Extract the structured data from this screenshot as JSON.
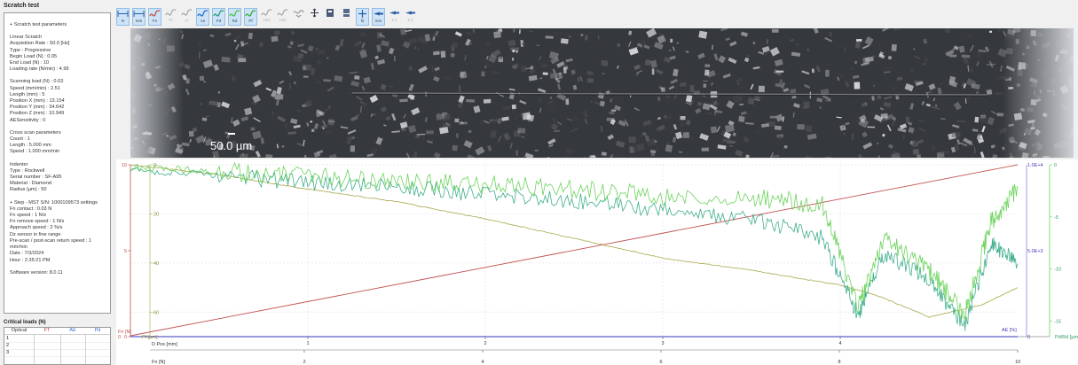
{
  "panel": {
    "title": "Scratch test",
    "params": [
      "+ Scratch test parameters",
      "",
      "Linear Scratch",
      "Acquisition Rate : 50.0 [Hz]",
      "Type : Progressive",
      "Begin Load (N) : 0.05",
      "End Load (N) : 10",
      "Loading rate (N/min) : 4.99",
      "",
      "Scanning load (N) : 0.03",
      "Speed (mm/min) : 2.51",
      "Length (mm) : 5",
      "Position X (mm) : 13.154",
      "Position Y (mm) : 34.642",
      "Position Z (mm) : 10.949",
      "AESensitivity : 0",
      "",
      "Cross scan parameters",
      "Count : 1",
      "Length : 5.000 mm",
      "Speed : 1.000 mm/min",
      "",
      "Indenter",
      "Type : Rockwell",
      "Serial number : SF-A95",
      "Material : Diamond",
      "Radius (µm) : 50",
      "",
      "+ Step - MST S/N: 1000109573 settings",
      "  Fn contact : 0.03 N",
      "  Fn speed : 1 N/s",
      "  Fn remove speed : 1 N/s",
      "  Approach speed : 2 %/s",
      "  Dz sensor in fine range",
      "  Pre-scan / post-scan return speed : 1",
      "mm/min",
      "Date : 7/3/2024",
      "Hour : 2:35:21 PM",
      "",
      "Software version: 8.0.11"
    ],
    "critical_title": "Critical loads (N)",
    "critical_headers": [
      "Optical",
      "FT",
      "AE",
      "Pd"
    ],
    "critical_rows": [
      "1",
      "2",
      "3"
    ]
  },
  "toolbar": {
    "buttons": [
      {
        "icon": "fit-n-icon",
        "label": "N",
        "active": true
      },
      {
        "icon": "fit-mm-icon",
        "label": "mm",
        "active": true
      },
      {
        "icon": "curve-fn-icon",
        "label": "Fn",
        "active": true
      },
      {
        "icon": "curve-ft-icon",
        "label": "Ft",
        "active": false
      },
      {
        "icon": "curve-mu-icon",
        "label": "µ",
        "active": false
      },
      {
        "icon": "curve-ae-icon",
        "label": "Ae",
        "active": true
      },
      {
        "icon": "curve-pd-icon",
        "label": "Pd",
        "active": true
      },
      {
        "icon": "curve-rd-icon",
        "label": "Rd",
        "active": true
      },
      {
        "icon": "curve-pf-icon",
        "label": "Pf",
        "active": true
      },
      {
        "icon": "curve-us1-icon",
        "label": "Us1",
        "active": false
      },
      {
        "icon": "curve-us2-icon",
        "label": "Us2",
        "active": false
      },
      {
        "icon": "curve-dropdown-icon",
        "label": "",
        "active": false
      },
      {
        "icon": "move-icon",
        "label": "",
        "active": false
      },
      {
        "icon": "export-icon",
        "label": "",
        "active": false
      },
      {
        "icon": "layout-icon",
        "label": "",
        "active": false
      },
      {
        "icon": "zoom-fit-icon",
        "label": "fit",
        "active": true
      },
      {
        "icon": "magnify-icon",
        "label": "mm",
        "active": true
      },
      {
        "icon": "magnify-1-icon",
        "label": "1:1",
        "active": false
      },
      {
        "icon": "magnify-2-icon",
        "label": "2:1",
        "active": false
      }
    ]
  },
  "micrograph": {
    "scale_label": "50.0 µm"
  },
  "chart_data": {
    "type": "line",
    "x_top_label": "D Pos [mm]",
    "x_top_ticks": [
      "1",
      "2",
      "3",
      "4"
    ],
    "x_top_range": [
      0,
      5
    ],
    "x_bottom_label": "Fn [N]",
    "x_bottom_ticks": [
      "2",
      "4",
      "6",
      "8",
      "10"
    ],
    "x_bottom_range": [
      0.05,
      10
    ],
    "y_left_outer_label": "Fn [N]",
    "y_left_outer_ticks": [
      "0",
      "5",
      "10"
    ],
    "y_left_outer_range": [
      0,
      10
    ],
    "y_left_inner_label": "Pf [µm]",
    "y_left_inner_ticks": [
      "0",
      "20",
      "40",
      "60"
    ],
    "y_left_inner_range": [
      0,
      70
    ],
    "y_right_inner_label": "AE [%]",
    "y_right_inner_ticks": [
      "0",
      "5.0E+3",
      "1.0E+4"
    ],
    "y_right_inner_range": [
      0,
      10000
    ],
    "y_right_outer_label": "Pd/Rd [µm]",
    "y_right_outer_ticks": [
      "0",
      "-5",
      "-10",
      "-15"
    ],
    "y_right_outer_range": [
      0,
      -16.5
    ],
    "colors": {
      "fn": "#c0504d",
      "pf": "#a7a84a",
      "pd": "#3fae8e",
      "rd": "#6bd35c",
      "ae": "#3338b8"
    },
    "series": [
      {
        "key": "fn",
        "unit": "N",
        "x_mm": [
          0,
          5
        ],
        "y": [
          0.05,
          10
        ]
      },
      {
        "key": "pf",
        "unit": "µm",
        "x_mm": [
          0,
          0.5,
          1.0,
          1.5,
          2.0,
          2.5,
          3.0,
          3.5,
          4.0,
          4.2,
          4.5,
          4.8,
          5.0
        ],
        "y": [
          0,
          4,
          10,
          15,
          22,
          30,
          38,
          43,
          49,
          53,
          62,
          57,
          50
        ]
      },
      {
        "key": "pd",
        "unit": "µm",
        "x_mm": [
          0,
          0.5,
          1.0,
          1.5,
          2.0,
          2.5,
          3.0,
          3.5,
          3.9,
          4.1,
          4.25,
          4.5,
          4.7,
          4.85,
          5.0
        ],
        "y": [
          -0.5,
          -1.0,
          -1.7,
          -2.2,
          -2.8,
          -3.5,
          -4.3,
          -5.2,
          -7.0,
          -14.5,
          -8.5,
          -11.0,
          -15.5,
          -7.5,
          -9.5
        ]
      },
      {
        "key": "rd",
        "unit": "µm",
        "x_mm": [
          0,
          0.5,
          1.0,
          1.5,
          2.0,
          2.5,
          3.0,
          3.5,
          3.9,
          4.1,
          4.25,
          4.5,
          4.7,
          4.85,
          5.0
        ],
        "y": [
          -0.3,
          -0.6,
          -1.1,
          -1.6,
          -1.9,
          -2.4,
          -2.9,
          -3.1,
          -3.8,
          -13.5,
          -7.2,
          -10.0,
          -14.5,
          -5.5,
          -2.2
        ]
      },
      {
        "key": "ae",
        "unit": "%",
        "x_mm": [
          0,
          5
        ],
        "y": [
          0,
          0
        ]
      }
    ]
  }
}
